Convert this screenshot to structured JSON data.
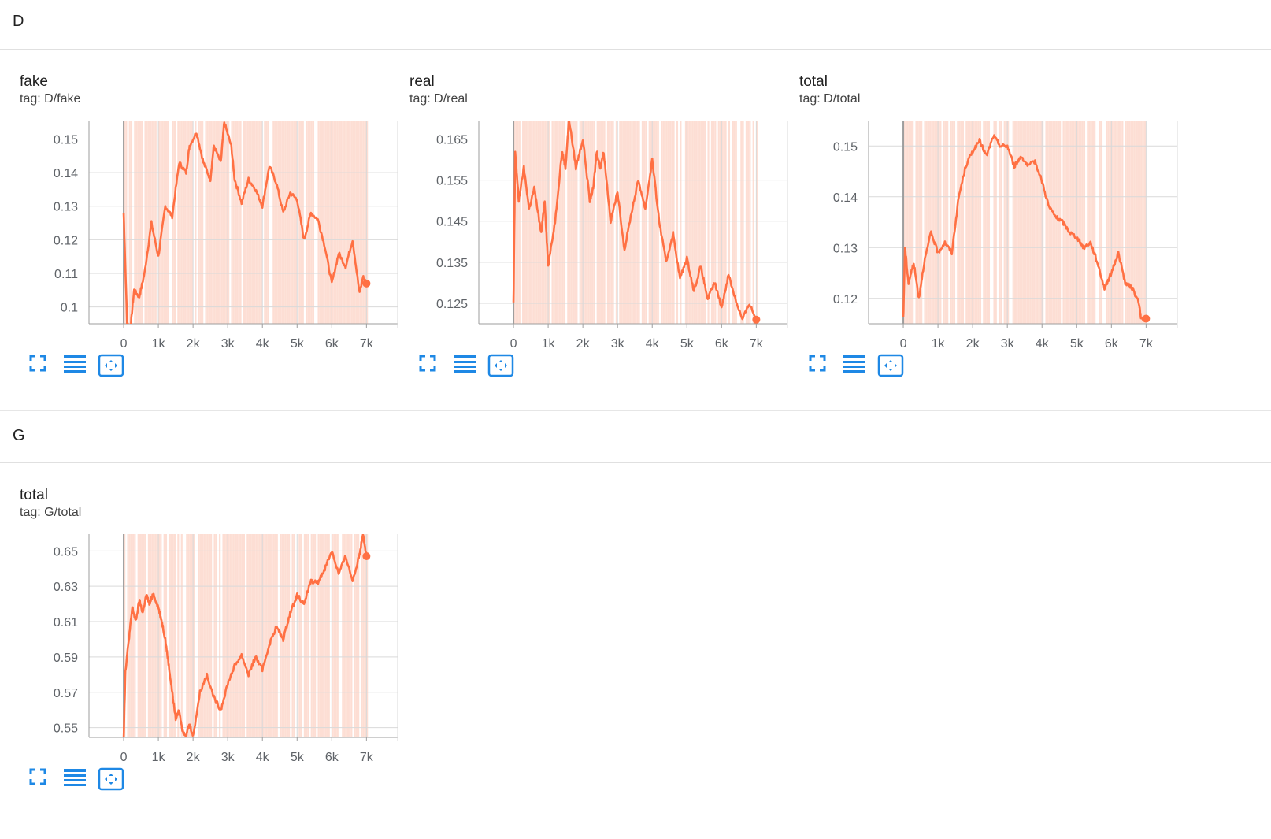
{
  "sections": [
    {
      "label": "D"
    },
    {
      "label": "G"
    }
  ],
  "colors": {
    "line": "#ff7043",
    "band": "#fdded4",
    "grid": "#d9d9d9",
    "axis": "#9e9e9e",
    "tool": "#1e88e5"
  },
  "icons": [
    "fullscreen-icon",
    "data-table-icon",
    "fit-domain-icon"
  ],
  "chart_data": [
    {
      "type": "line",
      "title": "fake",
      "tag": "tag: D/fake",
      "xlim": [
        -1000,
        7900
      ],
      "ylim": [
        0.095,
        0.1555
      ],
      "x_ticks": [
        0,
        1000,
        2000,
        3000,
        4000,
        5000,
        6000,
        7000
      ],
      "x_tick_labels": [
        "0",
        "1k",
        "2k",
        "3k",
        "4k",
        "5k",
        "6k",
        "7k"
      ],
      "y_ticks": [
        0.1,
        0.11,
        0.12,
        0.13,
        0.14,
        0.15
      ],
      "y_tick_labels": [
        "0.1",
        "0.11",
        "0.12",
        "0.13",
        "0.14",
        "0.15"
      ],
      "grid": true,
      "series": [
        {
          "x": [
            0,
            100,
            200,
            300,
            450,
            600,
            800,
            1000,
            1200,
            1400,
            1600,
            1800,
            1900,
            2100,
            2300,
            2500,
            2600,
            2800,
            2900,
            3100,
            3200,
            3400,
            3600,
            3800,
            4000,
            4200,
            4400,
            4600,
            4800,
            5000,
            5200,
            5400,
            5600,
            5800,
            6000,
            6200,
            6400,
            6600,
            6800,
            6900,
            7000
          ],
          "y": [
            0.128,
            0.095,
            0.094,
            0.105,
            0.103,
            0.11,
            0.125,
            0.115,
            0.13,
            0.127,
            0.143,
            0.14,
            0.148,
            0.152,
            0.143,
            0.138,
            0.148,
            0.143,
            0.155,
            0.148,
            0.138,
            0.131,
            0.138,
            0.135,
            0.13,
            0.142,
            0.137,
            0.128,
            0.134,
            0.132,
            0.12,
            0.128,
            0.126,
            0.118,
            0.107,
            0.116,
            0.112,
            0.12,
            0.104,
            0.109,
            0.107
          ]
        }
      ]
    },
    {
      "type": "line",
      "title": "real",
      "tag": "tag: D/real",
      "xlim": [
        -1000,
        7900
      ],
      "ylim": [
        0.12,
        0.1695
      ],
      "x_ticks": [
        0,
        1000,
        2000,
        3000,
        4000,
        5000,
        6000,
        7000
      ],
      "x_tick_labels": [
        "0",
        "1k",
        "2k",
        "3k",
        "4k",
        "5k",
        "6k",
        "7k"
      ],
      "y_ticks": [
        0.125,
        0.135,
        0.145,
        0.155,
        0.165
      ],
      "y_tick_labels": [
        "0.125",
        "0.135",
        "0.145",
        "0.155",
        "0.165"
      ],
      "grid": true,
      "series": [
        {
          "x": [
            0,
            50,
            150,
            300,
            450,
            600,
            800,
            900,
            1000,
            1200,
            1400,
            1500,
            1600,
            1800,
            2000,
            2200,
            2300,
            2400,
            2500,
            2600,
            2800,
            3000,
            3200,
            3400,
            3600,
            3800,
            4000,
            4200,
            4400,
            4600,
            4800,
            5000,
            5200,
            5400,
            5600,
            5800,
            6000,
            6200,
            6400,
            6600,
            6800,
            7000
          ],
          "y": [
            0.125,
            0.162,
            0.15,
            0.158,
            0.148,
            0.153,
            0.142,
            0.15,
            0.134,
            0.145,
            0.162,
            0.158,
            0.17,
            0.158,
            0.165,
            0.15,
            0.153,
            0.162,
            0.158,
            0.162,
            0.145,
            0.152,
            0.138,
            0.147,
            0.155,
            0.148,
            0.16,
            0.145,
            0.135,
            0.142,
            0.131,
            0.136,
            0.128,
            0.134,
            0.126,
            0.13,
            0.124,
            0.132,
            0.126,
            0.121,
            0.125,
            0.121
          ]
        }
      ]
    },
    {
      "type": "line",
      "title": "total",
      "tag": "tag: D/total",
      "xlim": [
        -1000,
        7900
      ],
      "ylim": [
        0.115,
        0.155
      ],
      "x_ticks": [
        0,
        1000,
        2000,
        3000,
        4000,
        5000,
        6000,
        7000
      ],
      "x_tick_labels": [
        "0",
        "1k",
        "2k",
        "3k",
        "4k",
        "5k",
        "6k",
        "7k"
      ],
      "y_ticks": [
        0.12,
        0.13,
        0.14,
        0.15
      ],
      "y_tick_labels": [
        "0.12",
        "0.13",
        "0.14",
        "0.15"
      ],
      "grid": true,
      "series": [
        {
          "x": [
            0,
            50,
            150,
            300,
            450,
            600,
            800,
            1000,
            1200,
            1400,
            1600,
            1800,
            2000,
            2200,
            2400,
            2600,
            2800,
            3000,
            3200,
            3400,
            3600,
            3800,
            4000,
            4200,
            4400,
            4600,
            4800,
            5000,
            5200,
            5400,
            5600,
            5800,
            6000,
            6200,
            6400,
            6600,
            6800,
            6850,
            7000
          ],
          "y": [
            0.116,
            0.13,
            0.123,
            0.127,
            0.12,
            0.127,
            0.133,
            0.129,
            0.131,
            0.129,
            0.14,
            0.146,
            0.149,
            0.151,
            0.148,
            0.152,
            0.15,
            0.15,
            0.146,
            0.148,
            0.146,
            0.147,
            0.143,
            0.138,
            0.136,
            0.135,
            0.133,
            0.132,
            0.13,
            0.131,
            0.127,
            0.122,
            0.125,
            0.129,
            0.123,
            0.122,
            0.119,
            0.116,
            0.116
          ]
        }
      ]
    },
    {
      "type": "line",
      "title": "total",
      "tag": "tag: G/total",
      "xlim": [
        -1000,
        7900
      ],
      "ylim": [
        0.5445,
        0.6595
      ],
      "x_ticks": [
        0,
        1000,
        2000,
        3000,
        4000,
        5000,
        6000,
        7000
      ],
      "x_tick_labels": [
        "0",
        "1k",
        "2k",
        "3k",
        "4k",
        "5k",
        "6k",
        "7k"
      ],
      "y_ticks": [
        0.55,
        0.57,
        0.59,
        0.61,
        0.63,
        0.65
      ],
      "y_tick_labels": [
        "0.55",
        "0.57",
        "0.59",
        "0.61",
        "0.63",
        "0.65"
      ],
      "grid": true,
      "series": [
        {
          "x": [
            0,
            50,
            150,
            250,
            350,
            450,
            550,
            650,
            750,
            850,
            1000,
            1100,
            1200,
            1300,
            1400,
            1500,
            1600,
            1700,
            1800,
            1900,
            2000,
            2200,
            2400,
            2600,
            2800,
            3000,
            3200,
            3400,
            3600,
            3800,
            4000,
            4200,
            4400,
            4600,
            4800,
            5000,
            5200,
            5400,
            5600,
            5800,
            6000,
            6200,
            6400,
            6600,
            6800,
            6900,
            7000
          ],
          "y": [
            0.544,
            0.582,
            0.6,
            0.618,
            0.61,
            0.622,
            0.615,
            0.625,
            0.62,
            0.626,
            0.618,
            0.61,
            0.6,
            0.585,
            0.57,
            0.555,
            0.56,
            0.548,
            0.546,
            0.552,
            0.545,
            0.57,
            0.58,
            0.567,
            0.56,
            0.575,
            0.585,
            0.591,
            0.58,
            0.59,
            0.583,
            0.597,
            0.607,
            0.6,
            0.615,
            0.625,
            0.62,
            0.633,
            0.632,
            0.64,
            0.65,
            0.637,
            0.647,
            0.633,
            0.648,
            0.66,
            0.647
          ]
        }
      ]
    }
  ]
}
